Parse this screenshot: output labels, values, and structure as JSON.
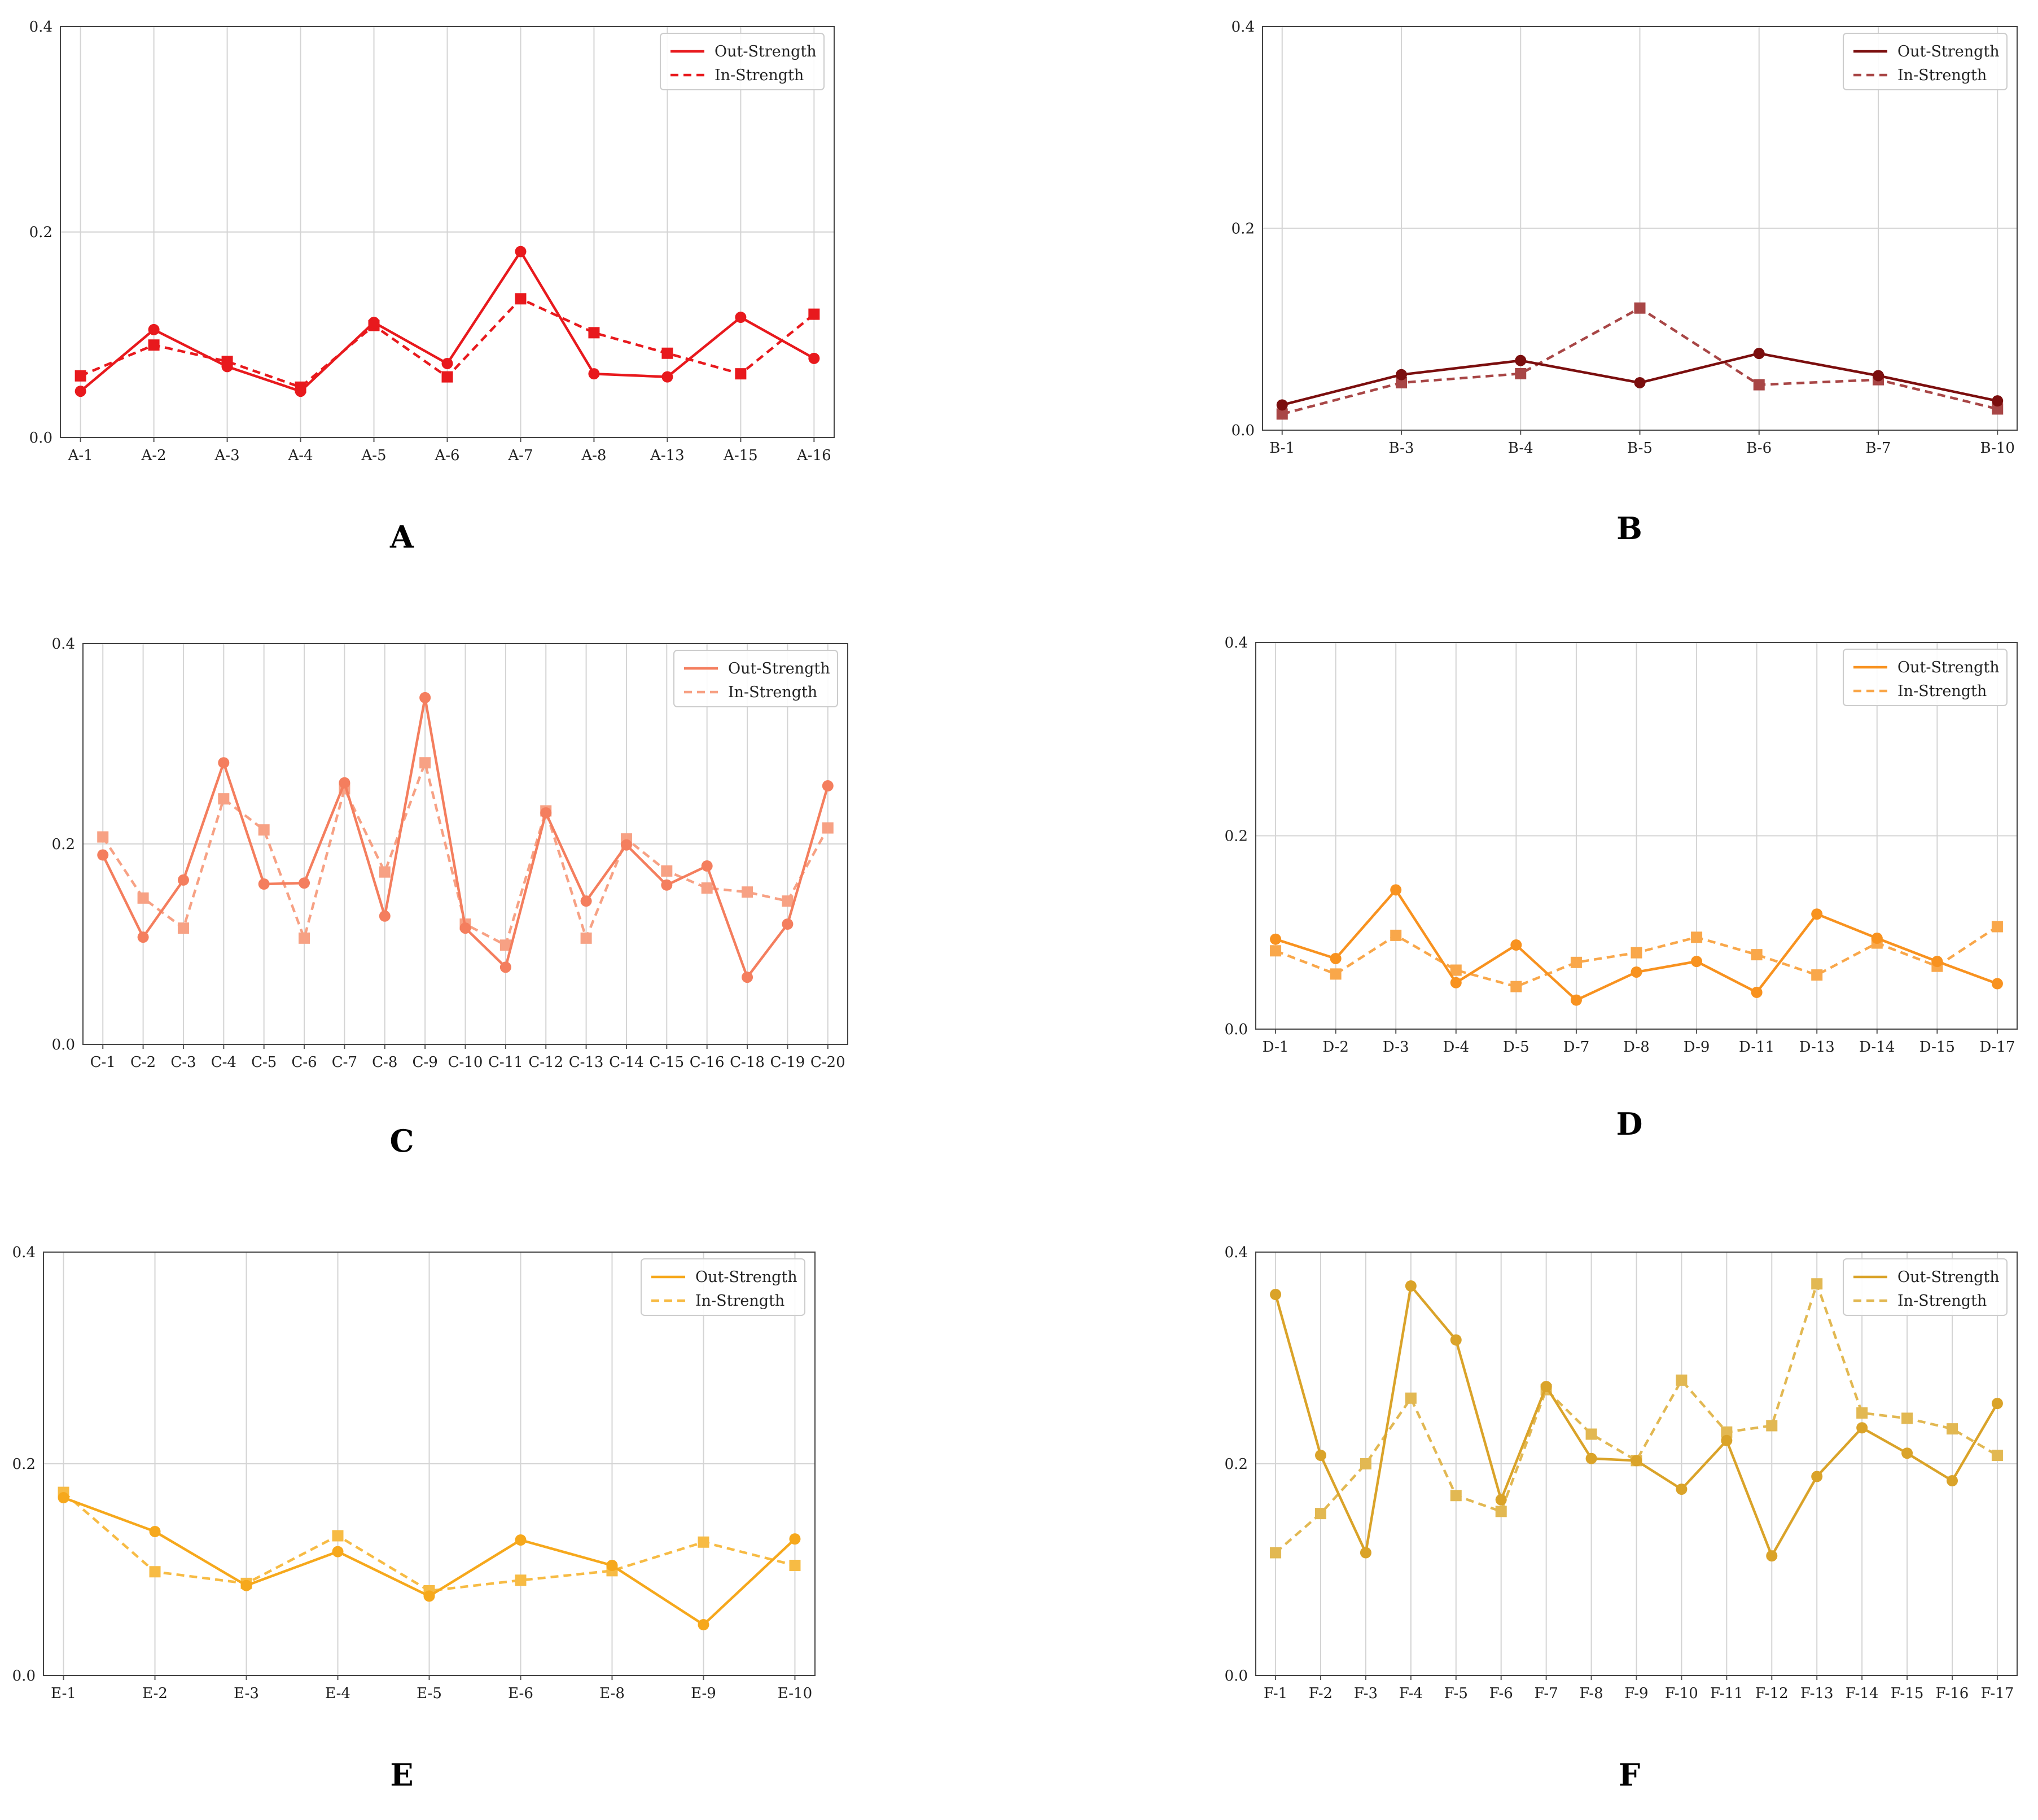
{
  "legend": {
    "out_label": "Out-Strength",
    "in_label": "In-Strength"
  },
  "chart_data": [
    {
      "type": "line",
      "panel": "A",
      "color": "#e8191d",
      "categories": [
        "A-1",
        "A-2",
        "A-3",
        "A-4",
        "A-5",
        "A-6",
        "A-7",
        "A-8",
        "A-13",
        "A-15",
        "A-16"
      ],
      "series": [
        {
          "name": "Out-Strength",
          "style": "solid",
          "marker": "circle",
          "values": [
            0.045,
            0.105,
            0.069,
            0.045,
            0.112,
            0.072,
            0.181,
            0.062,
            0.059,
            0.117,
            0.077
          ]
        },
        {
          "name": "In-Strength",
          "style": "dashed",
          "marker": "square",
          "values": [
            0.06,
            0.09,
            0.074,
            0.049,
            0.109,
            0.059,
            0.135,
            0.102,
            0.082,
            0.062,
            0.12
          ]
        }
      ],
      "yticks": [
        "0.0",
        "0.2",
        "0.4"
      ],
      "ylim": [
        0,
        0.4
      ],
      "legend_position": "top-right"
    },
    {
      "type": "line",
      "panel": "B",
      "color": "#7b0e0e",
      "in_color": "#a84646",
      "categories": [
        "B-1",
        "B-3",
        "B-4",
        "B-5",
        "B-6",
        "B-7",
        "B-10"
      ],
      "series": [
        {
          "name": "Out-Strength",
          "style": "solid",
          "marker": "circle",
          "values": [
            0.025,
            0.055,
            0.069,
            0.047,
            0.076,
            0.054,
            0.029
          ]
        },
        {
          "name": "In-Strength",
          "style": "dashed",
          "marker": "square",
          "values": [
            0.016,
            0.047,
            0.056,
            0.121,
            0.045,
            0.05,
            0.021
          ]
        }
      ],
      "yticks": [
        "0.0",
        "0.2",
        "0.4"
      ],
      "ylim": [
        0,
        0.4
      ],
      "legend_position": "top-right"
    },
    {
      "type": "line",
      "panel": "C",
      "color": "#f47e5e",
      "in_color": "#f7a184",
      "categories": [
        "C-1",
        "C-2",
        "C-3",
        "C-4",
        "C-5",
        "C-6",
        "C-7",
        "C-8",
        "C-9",
        "C-10",
        "C-11",
        "C-12",
        "C-13",
        "C-14",
        "C-15",
        "C-16",
        "C-18",
        "C-19",
        "C-20"
      ],
      "series": [
        {
          "name": "Out-Strength",
          "style": "solid",
          "marker": "circle",
          "values": [
            0.189,
            0.107,
            0.164,
            0.281,
            0.16,
            0.161,
            0.261,
            0.128,
            0.346,
            0.116,
            0.077,
            0.231,
            0.143,
            0.199,
            0.159,
            0.178,
            0.067,
            0.12,
            0.258
          ]
        },
        {
          "name": "In-Strength",
          "style": "dashed",
          "marker": "square",
          "values": [
            0.207,
            0.146,
            0.116,
            0.245,
            0.214,
            0.106,
            0.255,
            0.172,
            0.281,
            0.12,
            0.099,
            0.233,
            0.106,
            0.205,
            0.173,
            0.156,
            0.152,
            0.143,
            0.216
          ]
        }
      ],
      "yticks": [
        "0.0",
        "0.2",
        "0.4"
      ],
      "ylim": [
        0,
        0.4
      ],
      "legend_position": "top-right"
    },
    {
      "type": "line",
      "panel": "D",
      "color": "#f8921f",
      "in_color": "#f9a74a",
      "categories": [
        "D-1",
        "D-2",
        "D-3",
        "D-4",
        "D-5",
        "D-7",
        "D-8",
        "D-9",
        "D-11",
        "D-13",
        "D-14",
        "D-15",
        "D-17"
      ],
      "series": [
        {
          "name": "Out-Strength",
          "style": "solid",
          "marker": "circle",
          "values": [
            0.093,
            0.073,
            0.144,
            0.048,
            0.087,
            0.03,
            0.059,
            0.07,
            0.038,
            0.119,
            0.094,
            0.07,
            0.047
          ]
        },
        {
          "name": "In-Strength",
          "style": "dashed",
          "marker": "square",
          "values": [
            0.081,
            0.057,
            0.097,
            0.061,
            0.044,
            0.069,
            0.079,
            0.095,
            0.077,
            0.056,
            0.089,
            0.065,
            0.106
          ]
        }
      ],
      "yticks": [
        "0.0",
        "0.2",
        "0.4"
      ],
      "ylim": [
        0,
        0.4
      ],
      "legend_position": "top-right"
    },
    {
      "type": "line",
      "panel": "E",
      "color": "#f6a81c",
      "in_color": "#f7bb44",
      "categories": [
        "E-1",
        "E-2",
        "E-3",
        "E-4",
        "E-5",
        "E-6",
        "E-8",
        "E-9",
        "E-10"
      ],
      "series": [
        {
          "name": "Out-Strength",
          "style": "solid",
          "marker": "circle",
          "values": [
            0.168,
            0.136,
            0.085,
            0.117,
            0.075,
            0.128,
            0.104,
            0.048,
            0.129
          ]
        },
        {
          "name": "In-Strength",
          "style": "dashed",
          "marker": "square",
          "values": [
            0.173,
            0.098,
            0.087,
            0.132,
            0.08,
            0.09,
            0.099,
            0.126,
            0.104
          ]
        }
      ],
      "yticks": [
        "0.0",
        "0.2",
        "0.4"
      ],
      "ylim": [
        0,
        0.4
      ],
      "legend_position": "top-right"
    },
    {
      "type": "line",
      "panel": "F",
      "color": "#daa329",
      "in_color": "#e2b852",
      "categories": [
        "F-1",
        "F-2",
        "F-3",
        "F-4",
        "F-5",
        "F-6",
        "F-7",
        "F-8",
        "F-9",
        "F-10",
        "F-11",
        "F-12",
        "F-13",
        "F-14",
        "F-15",
        "F-16",
        "F-17"
      ],
      "series": [
        {
          "name": "Out-Strength",
          "style": "solid",
          "marker": "circle",
          "values": [
            0.36,
            0.208,
            0.116,
            0.368,
            0.317,
            0.166,
            0.273,
            0.205,
            0.203,
            0.176,
            0.222,
            0.113,
            0.188,
            0.234,
            0.21,
            0.184,
            0.257
          ]
        },
        {
          "name": "In-Strength",
          "style": "dashed",
          "marker": "square",
          "values": [
            0.116,
            0.153,
            0.2,
            0.262,
            0.17,
            0.155,
            0.27,
            0.228,
            0.203,
            0.279,
            0.23,
            0.236,
            0.37,
            0.248,
            0.243,
            0.233,
            0.208
          ]
        }
      ],
      "yticks": [
        "0.0",
        "0.2",
        "0.4"
      ],
      "ylim": [
        0,
        0.4
      ],
      "legend_position": "top-right"
    }
  ]
}
